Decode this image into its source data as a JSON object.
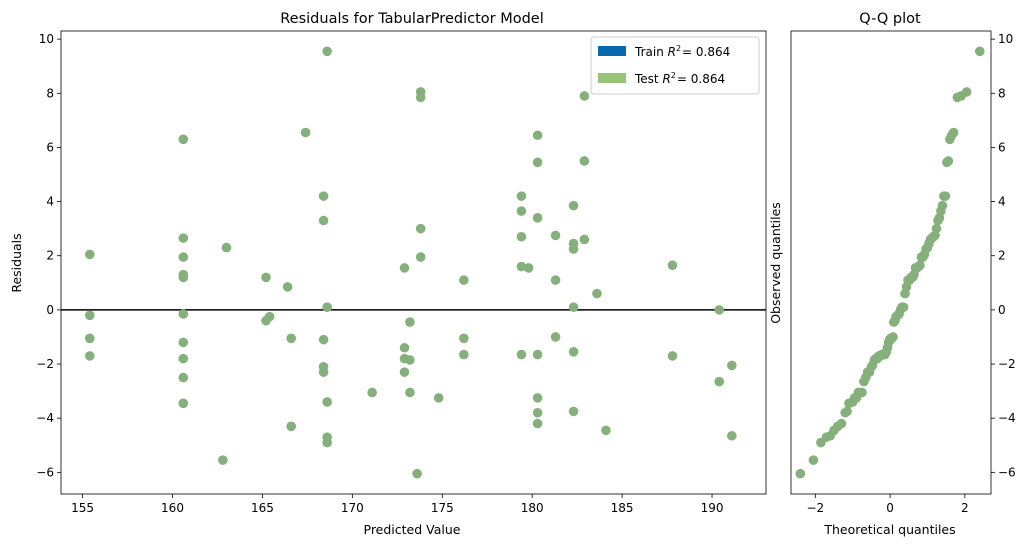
{
  "colors": {
    "train": "#0868ac",
    "test": "#98c379",
    "point": "#85b07c",
    "zero_line": "#000000"
  },
  "chart_data": [
    {
      "type": "scatter",
      "title": "Residuals for TabularPredictor Model",
      "xlabel": "Predicted Value",
      "ylabel": "Residuals",
      "xlim": [
        153.8,
        193.0
      ],
      "ylim": [
        -6.8,
        10.3
      ],
      "xticks": [
        155,
        160,
        165,
        170,
        175,
        180,
        185,
        190
      ],
      "yticks": [
        -6,
        -4,
        -2,
        0,
        2,
        4,
        6,
        8,
        10
      ],
      "zero_line": 0,
      "legend": {
        "placement": "top-right",
        "entries": [
          {
            "key": "train",
            "label_prefix": "Train ",
            "r2_value": "= 0.864"
          },
          {
            "key": "test",
            "label_prefix": "Test ",
            "r2_value": "= 0.864"
          }
        ]
      },
      "points": [
        [
          155.4,
          2.05
        ],
        [
          155.4,
          -0.2
        ],
        [
          155.4,
          -1.05
        ],
        [
          155.4,
          -1.7
        ],
        [
          160.6,
          6.3
        ],
        [
          160.6,
          2.65
        ],
        [
          160.6,
          1.95
        ],
        [
          160.6,
          1.3
        ],
        [
          160.6,
          1.2
        ],
        [
          160.6,
          -0.15
        ],
        [
          160.6,
          -1.2
        ],
        [
          160.6,
          -1.8
        ],
        [
          160.6,
          -2.5
        ],
        [
          160.6,
          -3.45
        ],
        [
          162.8,
          -5.55
        ],
        [
          163.0,
          2.3
        ],
        [
          165.2,
          1.2
        ],
        [
          165.2,
          -0.4
        ],
        [
          165.4,
          -0.25
        ],
        [
          166.4,
          0.85
        ],
        [
          166.6,
          -1.05
        ],
        [
          166.6,
          -4.3
        ],
        [
          167.4,
          6.55
        ],
        [
          168.4,
          4.2
        ],
        [
          168.4,
          3.3
        ],
        [
          168.4,
          -1.1
        ],
        [
          168.4,
          -2.1
        ],
        [
          168.4,
          -2.3
        ],
        [
          168.6,
          9.55
        ],
        [
          168.6,
          0.1
        ],
        [
          168.6,
          -3.4
        ],
        [
          168.6,
          -4.7
        ],
        [
          168.6,
          -4.9
        ],
        [
          171.1,
          -3.05
        ],
        [
          172.9,
          1.55
        ],
        [
          172.9,
          -1.4
        ],
        [
          172.9,
          -1.8
        ],
        [
          172.9,
          -2.3
        ],
        [
          173.2,
          -0.45
        ],
        [
          173.2,
          -1.85
        ],
        [
          173.2,
          -3.05
        ],
        [
          173.6,
          -6.05
        ],
        [
          173.8,
          8.05
        ],
        [
          173.8,
          7.85
        ],
        [
          173.8,
          3.0
        ],
        [
          173.8,
          1.95
        ],
        [
          174.8,
          -3.25
        ],
        [
          176.2,
          1.1
        ],
        [
          176.2,
          -1.05
        ],
        [
          176.2,
          -1.65
        ],
        [
          179.4,
          4.2
        ],
        [
          179.4,
          3.65
        ],
        [
          179.4,
          2.7
        ],
        [
          179.4,
          1.6
        ],
        [
          179.4,
          -1.65
        ],
        [
          179.8,
          1.55
        ],
        [
          180.3,
          6.45
        ],
        [
          180.3,
          5.45
        ],
        [
          180.3,
          3.4
        ],
        [
          180.3,
          -1.65
        ],
        [
          180.3,
          -3.25
        ],
        [
          180.3,
          -3.8
        ],
        [
          180.3,
          -4.2
        ],
        [
          181.3,
          2.75
        ],
        [
          181.3,
          1.1
        ],
        [
          181.3,
          -1.0
        ],
        [
          182.3,
          3.85
        ],
        [
          182.3,
          2.45
        ],
        [
          182.3,
          2.25
        ],
        [
          182.3,
          0.1
        ],
        [
          182.3,
          -1.55
        ],
        [
          182.3,
          -3.75
        ],
        [
          182.9,
          7.9
        ],
        [
          182.9,
          5.5
        ],
        [
          182.9,
          2.6
        ],
        [
          183.6,
          0.6
        ],
        [
          184.1,
          -4.45
        ],
        [
          187.8,
          1.65
        ],
        [
          187.8,
          -1.7
        ],
        [
          190.4,
          -0.0
        ],
        [
          190.4,
          -2.65
        ],
        [
          191.1,
          -2.05
        ],
        [
          191.1,
          -4.65
        ]
      ]
    },
    {
      "type": "scatter",
      "title": "Q-Q plot",
      "xlabel": "Theoretical quantiles",
      "ylabel": "Observed quantiles",
      "xlim": [
        -2.65,
        2.7
      ],
      "ylim": [
        -6.8,
        10.3
      ],
      "xticks": [
        -2,
        0,
        2
      ],
      "yticks": [
        -6,
        -4,
        -2,
        0,
        2,
        4,
        6,
        8,
        10
      ],
      "points": [
        [
          -2.4,
          -6.05
        ],
        [
          -2.05,
          -5.55
        ],
        [
          -1.85,
          -4.9
        ],
        [
          -1.7,
          -4.7
        ],
        [
          -1.6,
          -4.65
        ],
        [
          -1.5,
          -4.45
        ],
        [
          -1.4,
          -4.3
        ],
        [
          -1.3,
          -4.2
        ],
        [
          -1.2,
          -3.8
        ],
        [
          -1.15,
          -3.75
        ],
        [
          -1.1,
          -3.45
        ],
        [
          -1.0,
          -3.4
        ],
        [
          -0.95,
          -3.25
        ],
        [
          -0.9,
          -3.25
        ],
        [
          -0.85,
          -3.05
        ],
        [
          -0.8,
          -3.05
        ],
        [
          -0.75,
          -3.05
        ],
        [
          -0.7,
          -2.65
        ],
        [
          -0.65,
          -2.5
        ],
        [
          -0.6,
          -2.3
        ],
        [
          -0.55,
          -2.3
        ],
        [
          -0.5,
          -2.1
        ],
        [
          -0.47,
          -2.05
        ],
        [
          -0.42,
          -1.85
        ],
        [
          -0.38,
          -1.8
        ],
        [
          -0.34,
          -1.8
        ],
        [
          -0.3,
          -1.7
        ],
        [
          -0.26,
          -1.7
        ],
        [
          -0.22,
          -1.65
        ],
        [
          -0.18,
          -1.65
        ],
        [
          -0.14,
          -1.65
        ],
        [
          -0.1,
          -1.55
        ],
        [
          -0.07,
          -1.4
        ],
        [
          -0.04,
          -1.2
        ],
        [
          -0.01,
          -1.1
        ],
        [
          0.02,
          -1.05
        ],
        [
          0.05,
          -1.05
        ],
        [
          0.08,
          -1.0
        ],
        [
          0.1,
          -0.45
        ],
        [
          0.13,
          -0.4
        ],
        [
          0.16,
          -0.25
        ],
        [
          0.2,
          -0.2
        ],
        [
          0.24,
          -0.15
        ],
        [
          0.28,
          0.0
        ],
        [
          0.32,
          0.1
        ],
        [
          0.36,
          0.1
        ],
        [
          0.4,
          0.6
        ],
        [
          0.44,
          0.85
        ],
        [
          0.48,
          1.1
        ],
        [
          0.52,
          1.1
        ],
        [
          0.56,
          1.2
        ],
        [
          0.6,
          1.2
        ],
        [
          0.64,
          1.3
        ],
        [
          0.68,
          1.55
        ],
        [
          0.72,
          1.55
        ],
        [
          0.76,
          1.6
        ],
        [
          0.8,
          1.65
        ],
        [
          0.84,
          1.95
        ],
        [
          0.88,
          1.95
        ],
        [
          0.92,
          2.05
        ],
        [
          0.96,
          2.25
        ],
        [
          1.0,
          2.3
        ],
        [
          1.04,
          2.45
        ],
        [
          1.08,
          2.6
        ],
        [
          1.12,
          2.65
        ],
        [
          1.16,
          2.7
        ],
        [
          1.2,
          2.75
        ],
        [
          1.24,
          3.0
        ],
        [
          1.28,
          3.3
        ],
        [
          1.32,
          3.4
        ],
        [
          1.36,
          3.65
        ],
        [
          1.4,
          3.85
        ],
        [
          1.44,
          4.2
        ],
        [
          1.48,
          4.2
        ],
        [
          1.52,
          5.45
        ],
        [
          1.56,
          5.5
        ],
        [
          1.6,
          6.3
        ],
        [
          1.65,
          6.45
        ],
        [
          1.7,
          6.55
        ],
        [
          1.8,
          7.85
        ],
        [
          1.9,
          7.9
        ],
        [
          2.05,
          8.05
        ],
        [
          2.4,
          9.55
        ]
      ]
    }
  ]
}
